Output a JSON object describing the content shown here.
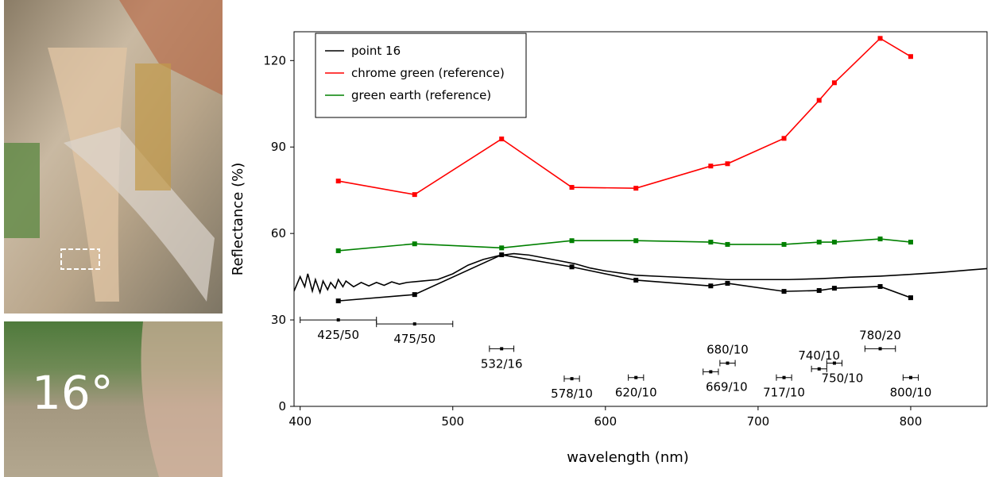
{
  "photo_label": "16°",
  "chart_data": {
    "type": "line",
    "xlabel": "wavelength (nm)",
    "ylabel": "Reflectance (%)",
    "xlim": [
      396,
      850
    ],
    "ylim": [
      0,
      130
    ],
    "xticks": [
      400,
      500,
      600,
      700,
      800
    ],
    "yticks": [
      0,
      30,
      60,
      90,
      120
    ],
    "legend": "upper left",
    "x": [
      425,
      475,
      532,
      578,
      620,
      669,
      680,
      717,
      740,
      750,
      780,
      800
    ],
    "series": [
      {
        "name": "point 16",
        "color": "#000000",
        "values": [
          36.6,
          38.8,
          52.6,
          48.4,
          43.8,
          41.8,
          42.7,
          39.9,
          40.2,
          41,
          41.6,
          37.7
        ]
      },
      {
        "name": "chrome green (reference)",
        "color": "#ff0000",
        "values": [
          78.2,
          73.5,
          92.8,
          76,
          75.7,
          83.4,
          84.2,
          93,
          106.2,
          112.3,
          127.7,
          121.4
        ]
      },
      {
        "name": "green earth (reference)",
        "color": "#008000",
        "values": [
          54,
          56.4,
          55,
          57.5,
          57.5,
          57,
          56.2,
          56.2,
          57,
          57,
          58.1,
          57
        ]
      },
      {
        "color": "#000000",
        "x": [
          396,
          400,
          403,
          405,
          408,
          410,
          413,
          415,
          418,
          420,
          423,
          425,
          428,
          430,
          435,
          440,
          445,
          450,
          455,
          460,
          465,
          470,
          480,
          490,
          500,
          510,
          520,
          530,
          540,
          550,
          560,
          570,
          580,
          590,
          600,
          620,
          640,
          660,
          680,
          700,
          720,
          740,
          760,
          780,
          800,
          820,
          840,
          850
        ],
        "values": [
          40,
          45,
          41.5,
          46,
          40,
          44,
          39.5,
          43.5,
          40.5,
          43,
          41,
          44,
          41.5,
          43.5,
          41.5,
          43,
          41.8,
          43,
          42,
          43.2,
          42.4,
          43,
          43.5,
          44,
          46,
          49,
          51,
          52.3,
          53,
          52.5,
          51.5,
          50.5,
          49.5,
          48,
          47,
          45.5,
          45,
          44.5,
          44,
          44,
          44,
          44.3,
          44.8,
          45.2,
          45.8,
          46.5,
          47.4,
          47.8
        ]
      }
    ],
    "filters": [
      {
        "label": "425/50",
        "center": 425,
        "halfwidth": 25,
        "y": 30
      },
      {
        "label": "475/50",
        "center": 475,
        "halfwidth": 25,
        "y": 28.6
      },
      {
        "label": "532/16",
        "center": 532,
        "halfwidth": 8,
        "y": 20
      },
      {
        "label": "578/10",
        "center": 578,
        "halfwidth": 5,
        "y": 9.6
      },
      {
        "label": "620/10",
        "center": 620,
        "halfwidth": 5,
        "y": 10
      },
      {
        "label": "669/10",
        "center": 669,
        "halfwidth": 5,
        "y": 12
      },
      {
        "label": "680/10",
        "center": 680,
        "halfwidth": 5,
        "y": 15
      },
      {
        "label": "717/10",
        "center": 717,
        "halfwidth": 5,
        "y": 10
      },
      {
        "label": "740/10",
        "center": 740,
        "halfwidth": 5,
        "y": 13
      },
      {
        "label": "750/10",
        "center": 750,
        "halfwidth": 5,
        "y": 15
      },
      {
        "label": "780/20",
        "center": 780,
        "halfwidth": 10,
        "y": 20
      },
      {
        "label": "800/10",
        "center": 800,
        "halfwidth": 5,
        "y": 10
      }
    ]
  }
}
